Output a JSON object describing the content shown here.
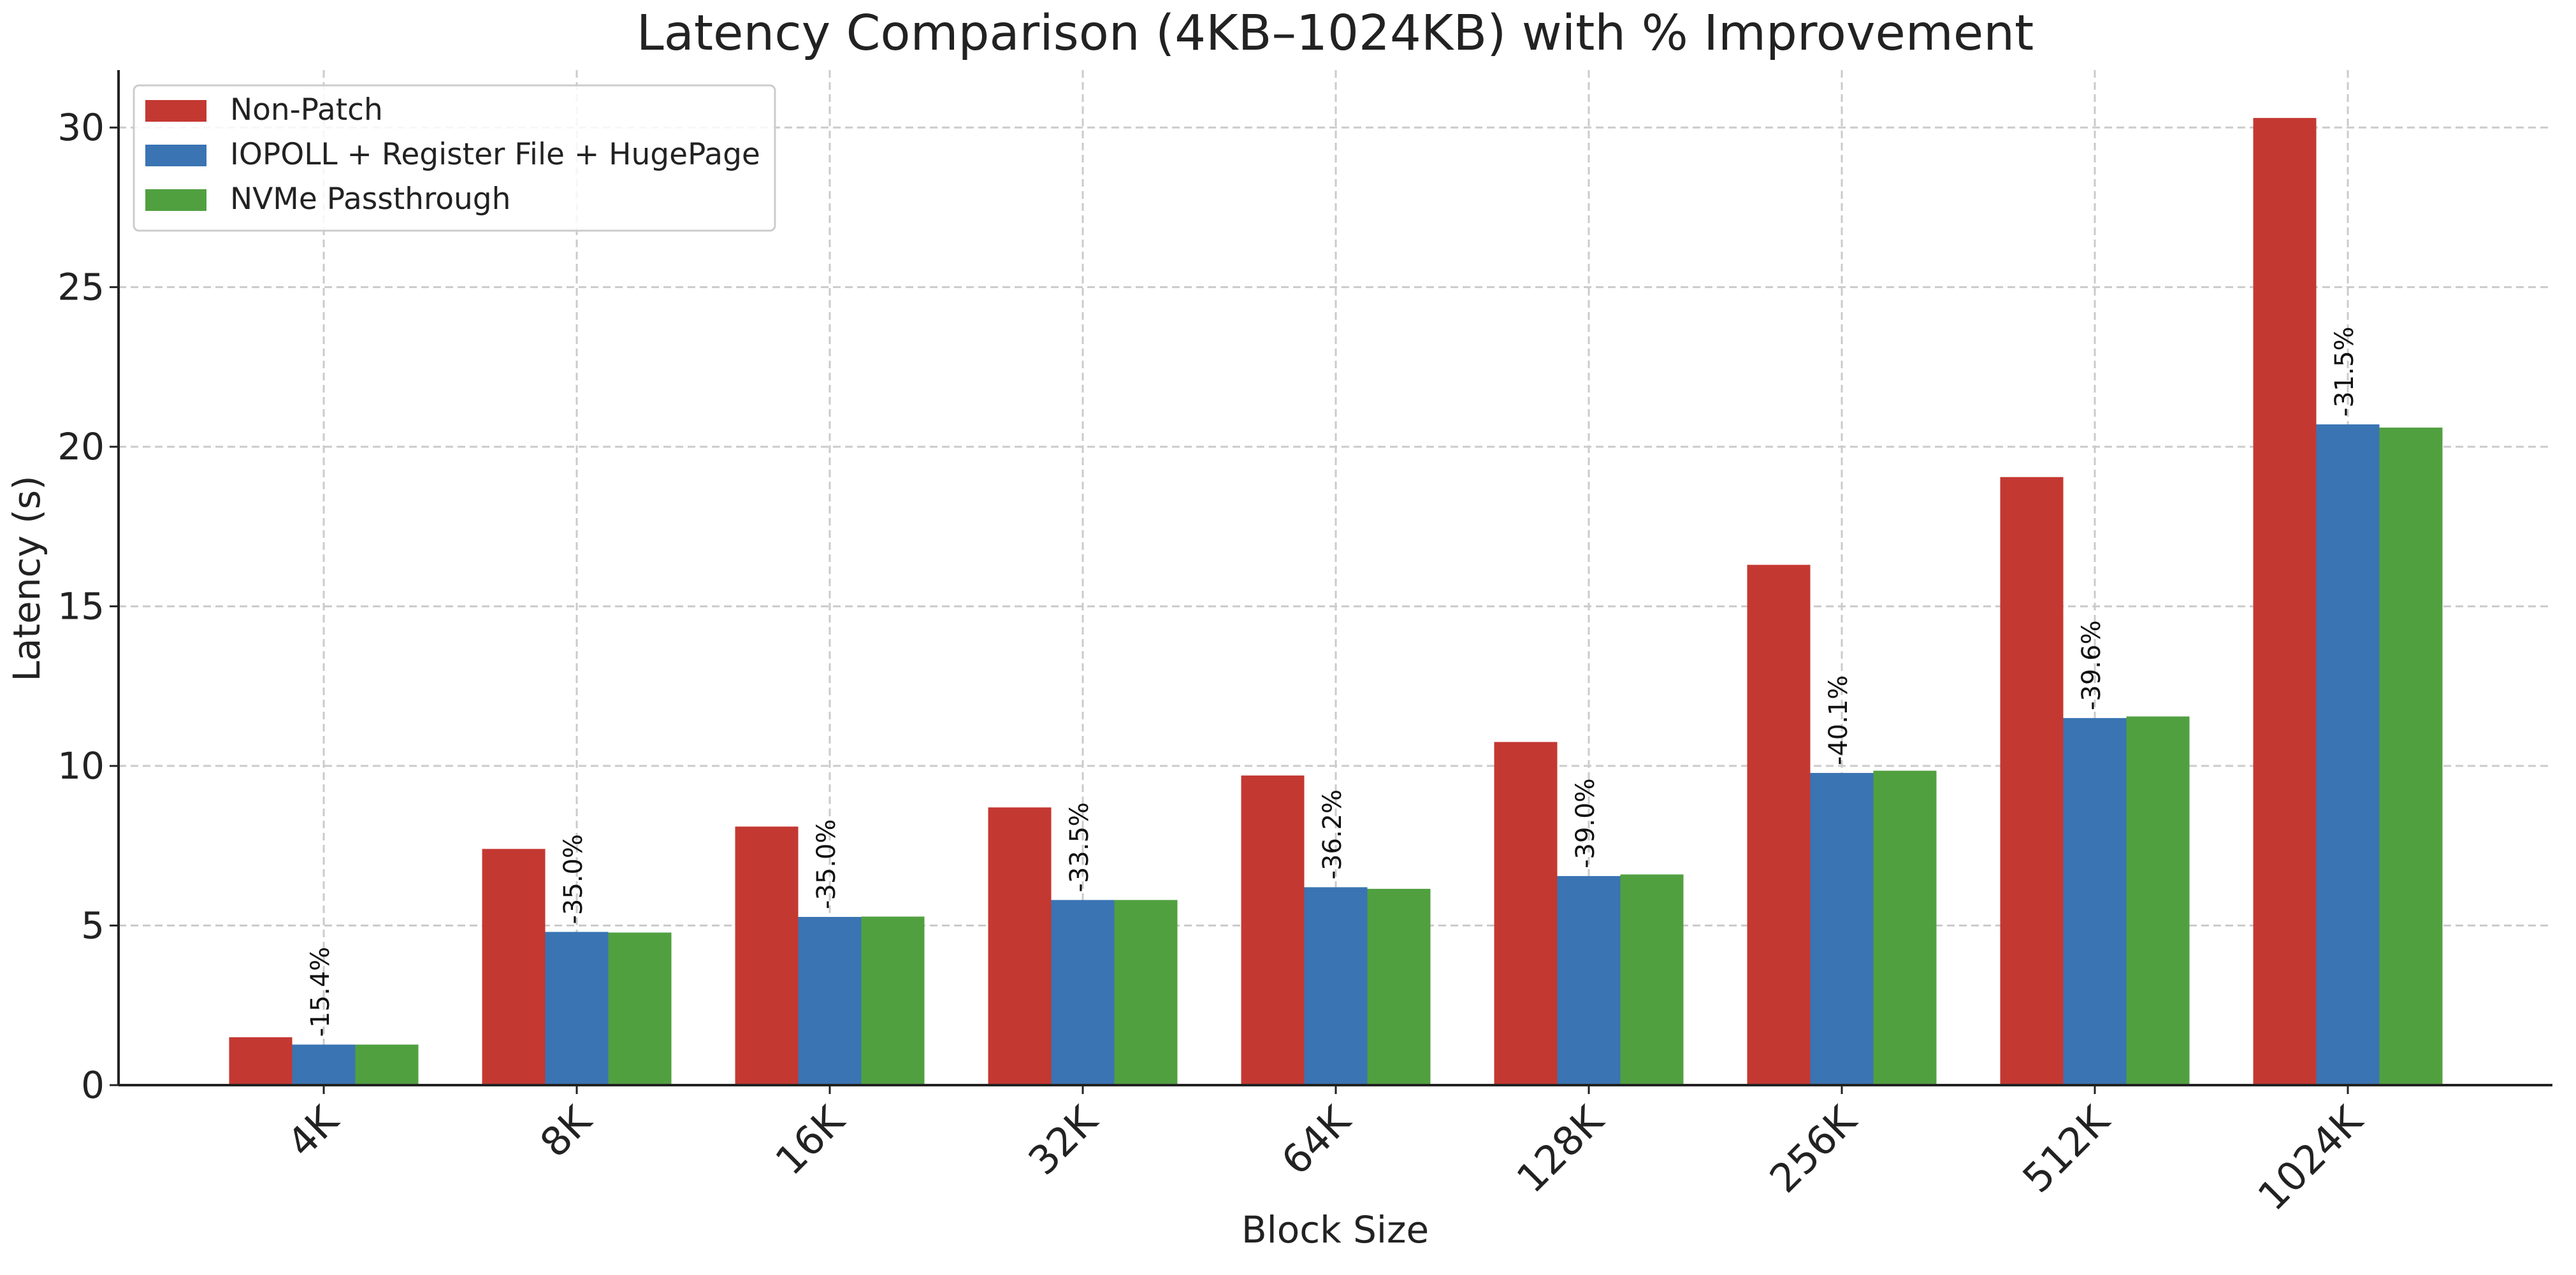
{
  "chart_data": {
    "type": "bar",
    "title": "Latency Comparison (4KB–1024KB) with % Improvement",
    "xlabel": "Block Size",
    "ylabel": "Latency (s)",
    "ylim": [
      0,
      31.8
    ],
    "yticks": [
      0,
      5,
      10,
      15,
      20,
      25,
      30
    ],
    "grid": true,
    "legend_position": "top-left",
    "categories": [
      "4K",
      "8K",
      "16K",
      "32K",
      "64K",
      "128K",
      "256K",
      "512K",
      "1024K"
    ],
    "series": [
      {
        "name": "Non-Patch",
        "color": "#c43832",
        "values": [
          1.5,
          7.4,
          8.1,
          8.7,
          9.7,
          10.75,
          16.3,
          19.05,
          30.3
        ]
      },
      {
        "name": "IOPOLL + Register File + HugePage",
        "color": "#3a74b3",
        "values": [
          1.27,
          4.8,
          5.27,
          5.8,
          6.2,
          6.55,
          9.78,
          11.5,
          20.7
        ]
      },
      {
        "name": "NVMe Passthrough",
        "color": "#51a040",
        "values": [
          1.27,
          4.78,
          5.28,
          5.8,
          6.15,
          6.6,
          9.85,
          11.55,
          20.6
        ]
      }
    ],
    "annotations": [
      "-15.4%",
      "-35.0%",
      "-35.0%",
      "-33.5%",
      "-36.2%",
      "-39.0%",
      "-40.1%",
      "-39.6%",
      "-31.5%"
    ]
  }
}
